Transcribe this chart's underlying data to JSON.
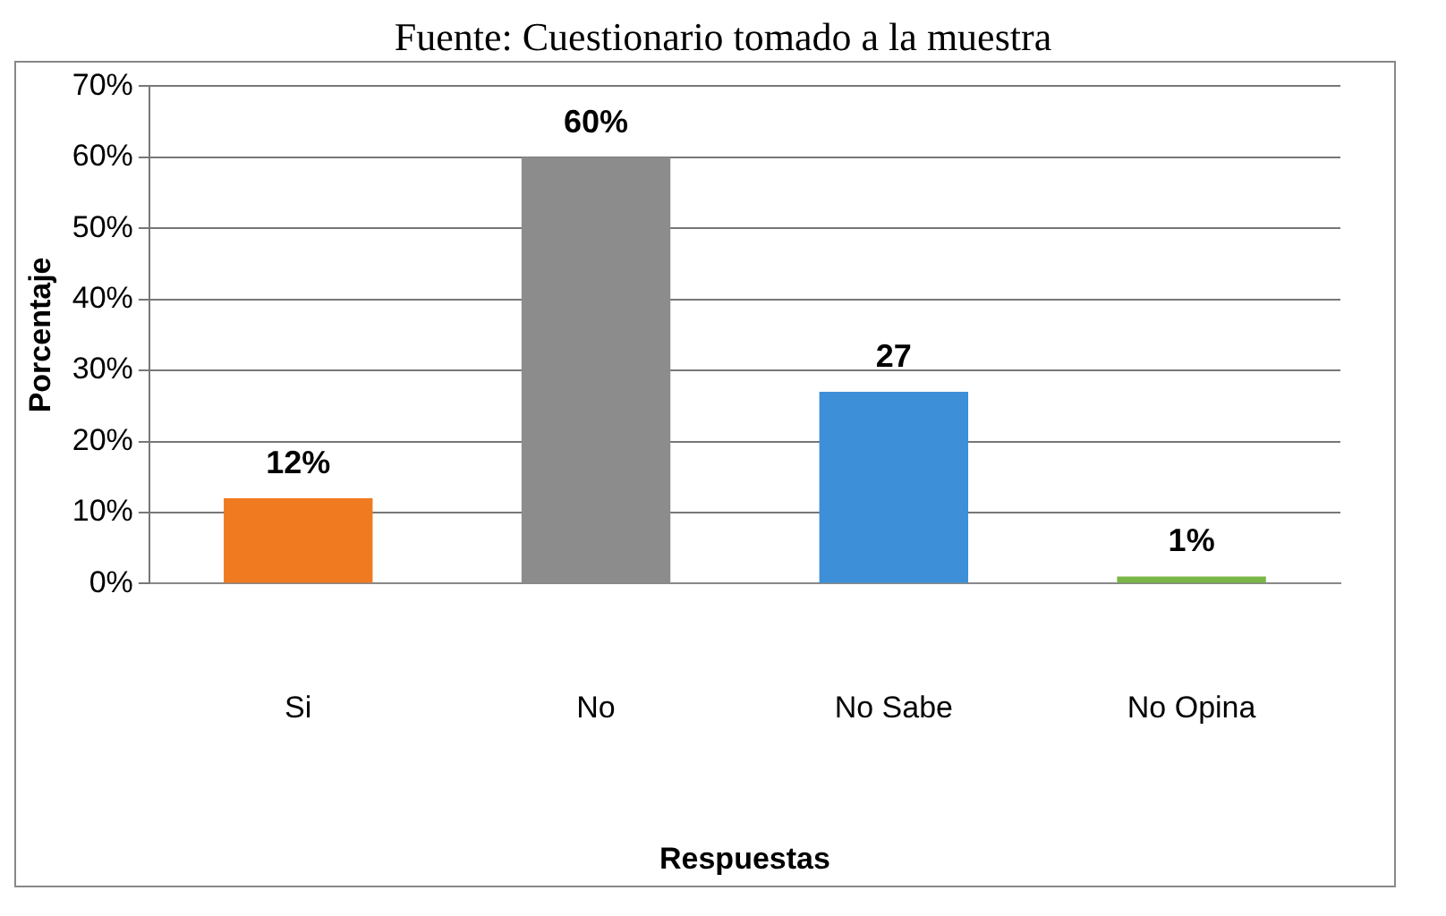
{
  "chart_data": {
    "type": "bar",
    "annotations": [
      "Fuente: Cuestionario tomado a la muestra"
    ],
    "xlabel": "Respuestas",
    "ylabel": "Porcentaje",
    "categories": [
      "Si",
      "No",
      "No Sabe",
      "No Opina"
    ],
    "values": [
      12,
      60,
      27,
      1
    ],
    "colors": [
      "#f07a20",
      "#8c8c8c",
      "#3d8fd8",
      "#7ab648"
    ],
    "value_labels": [
      "12%",
      "60%",
      "27",
      "1%"
    ],
    "ylim": [
      0,
      70
    ],
    "yticks": [
      {
        "value": 0,
        "label": "0%"
      },
      {
        "value": 10,
        "label": "10%"
      },
      {
        "value": 20,
        "label": "20%"
      },
      {
        "value": 30,
        "label": "30%"
      },
      {
        "value": 40,
        "label": "40%"
      },
      {
        "value": 50,
        "label": "50%"
      },
      {
        "value": 60,
        "label": "60%"
      },
      {
        "value": 70,
        "label": "70%"
      }
    ],
    "grid": "y",
    "legend": false
  }
}
